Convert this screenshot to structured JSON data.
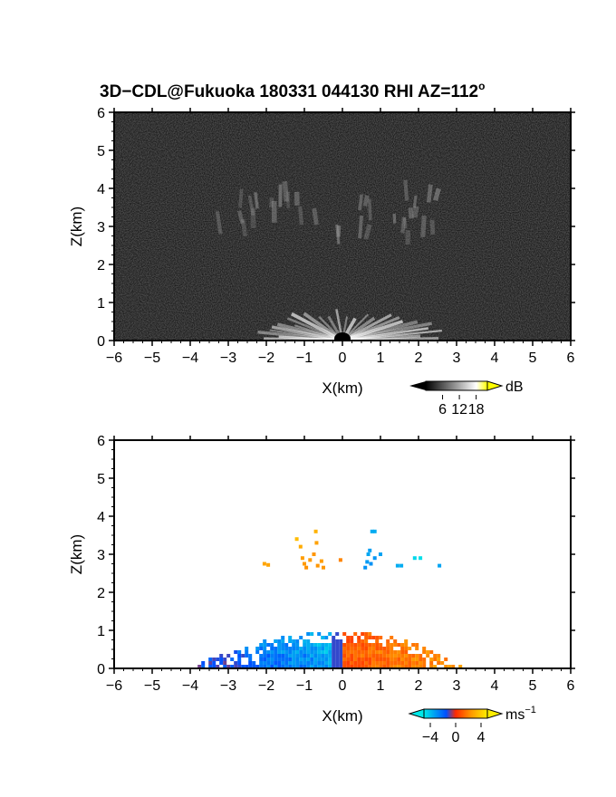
{
  "figure": {
    "title": "3D−CDL@Fukuoka 180331 044130 RHI AZ=112",
    "title_superscript": "o"
  },
  "chart_data": [
    {
      "type": "heatmap",
      "panel": "reflectivity",
      "xlabel": "X(km)",
      "ylabel": "Z(km)",
      "xlim": [
        -6,
        6
      ],
      "ylim": [
        0,
        6
      ],
      "xticks": [
        -6,
        -5,
        -4,
        -3,
        -2,
        -1,
        0,
        1,
        2,
        3,
        4,
        5,
        6
      ],
      "yticks": [
        0,
        1,
        2,
        3,
        4,
        5,
        6
      ],
      "colorbar": {
        "unit": "dB",
        "ticks": [
          "6",
          "12",
          "18"
        ],
        "tick_values": [
          6,
          12,
          18
        ],
        "range": [
          0,
          22
        ],
        "colors": [
          "#000000",
          "#ffffff",
          "#ffff00"
        ]
      },
      "background_color": "#101010",
      "features": [
        {
          "kind": "near-ground return fan",
          "x_range": [
            -3,
            3
          ],
          "z_range": [
            0,
            1.0
          ]
        },
        {
          "kind": "mid-level streaky layer",
          "x_range": [
            -3.5,
            2.5
          ],
          "z_range": [
            2.5,
            3.7
          ]
        }
      ]
    },
    {
      "type": "scatter",
      "panel": "doppler_velocity",
      "xlabel": "X(km)",
      "ylabel": "Z(km)",
      "xlim": [
        -6,
        6
      ],
      "ylim": [
        0,
        6
      ],
      "xticks": [
        -6,
        -5,
        -4,
        -3,
        -2,
        -1,
        0,
        1,
        2,
        3,
        4,
        5,
        6
      ],
      "yticks": [
        0,
        1,
        2,
        3,
        4,
        5,
        6
      ],
      "colorbar": {
        "unit": "ms",
        "unit_superscript": "−1",
        "ticks": [
          "−4",
          "0",
          "4"
        ],
        "tick_values": [
          -4,
          0,
          4
        ],
        "range": [
          -5,
          5
        ],
        "colors": [
          "#00e0e0",
          "#0050ff",
          "#ff2a00",
          "#ffee00"
        ]
      },
      "low_level_band": {
        "x_range": [
          -3.9,
          3.1
        ],
        "z_range": [
          0,
          0.9
        ]
      },
      "points": [
        {
          "x": -2.05,
          "z": 2.75,
          "v": 2.8
        },
        {
          "x": -1.95,
          "z": 2.72,
          "v": 2.8
        },
        {
          "x": -1.2,
          "z": 3.4,
          "v": 3.5
        },
        {
          "x": -1.1,
          "z": 3.2,
          "v": 3.0
        },
        {
          "x": -1.05,
          "z": 2.9,
          "v": 2.6
        },
        {
          "x": -1.0,
          "z": 2.75,
          "v": 2.5
        },
        {
          "x": -0.95,
          "z": 2.65,
          "v": 2.3
        },
        {
          "x": -0.85,
          "z": 2.85,
          "v": 2.5
        },
        {
          "x": -0.75,
          "z": 3.0,
          "v": 2.4
        },
        {
          "x": -0.7,
          "z": 3.6,
          "v": 3.2
        },
        {
          "x": -0.68,
          "z": 3.3,
          "v": 2.7
        },
        {
          "x": -0.65,
          "z": 2.7,
          "v": 2.4
        },
        {
          "x": -0.55,
          "z": 2.82,
          "v": 2.6
        },
        {
          "x": -0.5,
          "z": 2.65,
          "v": 2.4
        },
        {
          "x": -0.05,
          "z": 2.85,
          "v": 2.0
        },
        {
          "x": 0.6,
          "z": 2.65,
          "v": -3.0
        },
        {
          "x": 0.65,
          "z": 2.8,
          "v": -3.2
        },
        {
          "x": 0.68,
          "z": 3.0,
          "v": -3.5
        },
        {
          "x": 0.72,
          "z": 3.1,
          "v": -3.3
        },
        {
          "x": 0.75,
          "z": 2.75,
          "v": -3.0
        },
        {
          "x": 0.78,
          "z": 3.6,
          "v": -3.6
        },
        {
          "x": 0.85,
          "z": 3.6,
          "v": -3.6
        },
        {
          "x": 0.85,
          "z": 2.9,
          "v": -3.1
        },
        {
          "x": 1.0,
          "z": 3.0,
          "v": -3.4
        },
        {
          "x": 1.45,
          "z": 2.7,
          "v": -3.6
        },
        {
          "x": 1.55,
          "z": 2.7,
          "v": -3.6
        },
        {
          "x": 1.9,
          "z": 2.9,
          "v": -4.6
        },
        {
          "x": 2.05,
          "z": 2.9,
          "v": -4.8
        },
        {
          "x": 2.55,
          "z": 2.7,
          "v": -3.4
        }
      ]
    }
  ]
}
